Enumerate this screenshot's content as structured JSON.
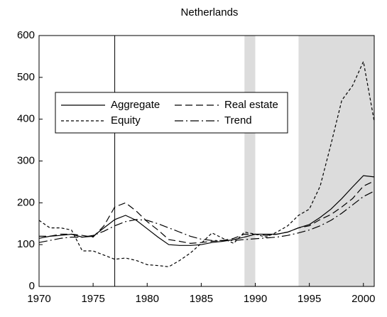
{
  "chart_data": {
    "type": "line",
    "title": "Netherlands",
    "x": [
      1970,
      1971,
      1972,
      1973,
      1974,
      1975,
      1976,
      1977,
      1978,
      1979,
      1980,
      1981,
      1982,
      1983,
      1984,
      1985,
      1986,
      1987,
      1988,
      1989,
      1990,
      1991,
      1992,
      1993,
      1994,
      1995,
      1996,
      1997,
      1998,
      1999,
      2000,
      2001
    ],
    "series": [
      {
        "name": "Aggregate",
        "color": "#000000",
        "dash": "none",
        "values": [
          115,
          120,
          122,
          125,
          118,
          120,
          140,
          160,
          170,
          158,
          138,
          118,
          100,
          98,
          98,
          100,
          105,
          108,
          112,
          118,
          125,
          125,
          125,
          130,
          140,
          148,
          165,
          185,
          210,
          238,
          265,
          262
        ]
      },
      {
        "name": "Real estate",
        "color": "#000000",
        "dash": "10,5",
        "values": [
          120,
          120,
          125,
          125,
          122,
          118,
          145,
          190,
          200,
          180,
          155,
          135,
          112,
          108,
          103,
          105,
          108,
          110,
          115,
          125,
          125,
          122,
          125,
          130,
          140,
          145,
          160,
          172,
          190,
          210,
          240,
          252
        ]
      },
      {
        "name": "Equity",
        "color": "#000000",
        "dash": "4,3",
        "values": [
          158,
          140,
          140,
          135,
          85,
          85,
          75,
          65,
          68,
          62,
          52,
          50,
          47,
          62,
          80,
          103,
          128,
          115,
          103,
          130,
          125,
          118,
          130,
          145,
          170,
          185,
          240,
          340,
          445,
          480,
          538,
          395
        ]
      },
      {
        "name": "Trend",
        "color": "#000000",
        "dash": "12,4,2,4",
        "values": [
          105,
          110,
          115,
          118,
          118,
          122,
          132,
          145,
          155,
          160,
          158,
          150,
          140,
          130,
          120,
          113,
          110,
          110,
          110,
          112,
          114,
          116,
          118,
          122,
          128,
          135,
          145,
          158,
          175,
          195,
          215,
          228
        ]
      }
    ],
    "xlim": [
      1970,
      2001
    ],
    "xticks": [
      1970,
      1975,
      1980,
      1985,
      1990,
      1995,
      2000
    ],
    "ylim": [
      0,
      600
    ],
    "yticks": [
      0,
      100,
      200,
      300,
      400,
      500,
      600
    ],
    "shaded_regions": [
      [
        1989,
        1990
      ],
      [
        1994,
        2001
      ]
    ],
    "shade_color": "#dcdcdc",
    "vline": 1977,
    "grid": false
  }
}
